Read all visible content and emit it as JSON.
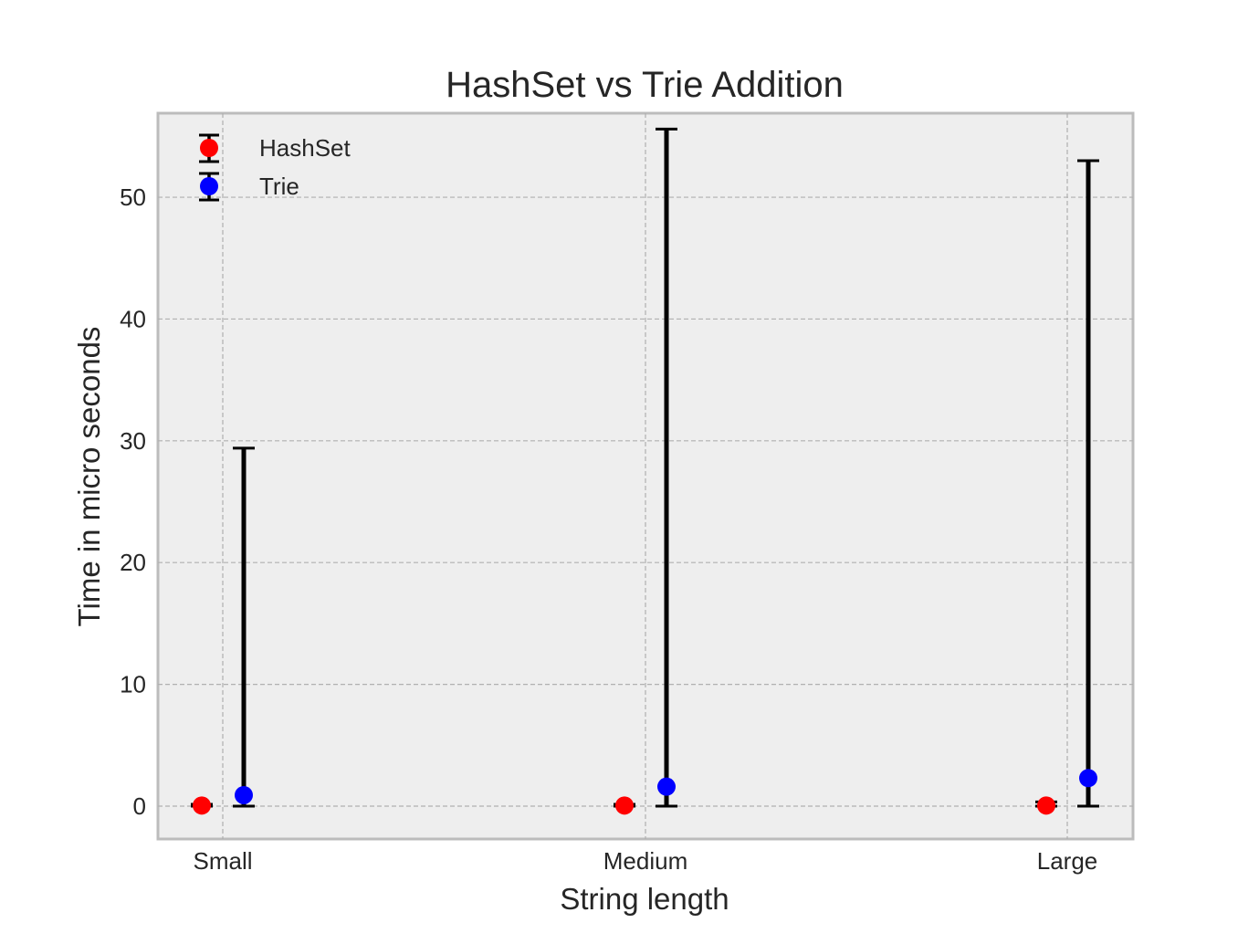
{
  "chart_data": {
    "type": "scatter",
    "title": "HashSet vs Trie Addition",
    "xlabel": "String length",
    "ylabel": "Time in micro seconds",
    "categories": [
      "Small",
      "Medium",
      "Large"
    ],
    "yticks": [
      0,
      10,
      20,
      30,
      40,
      50
    ],
    "ylim": [
      -2.7,
      56.9
    ],
    "grid": true,
    "legend_position": "top-left",
    "series": [
      {
        "name": "HashSet",
        "color": "#ff0000",
        "values": [
          0.05,
          0.05,
          0.05
        ],
        "err_low": [
          0.05,
          0.05,
          0.05
        ],
        "err_high": [
          0.1,
          0.1,
          0.3
        ]
      },
      {
        "name": "Trie",
        "color": "#0000ff",
        "values": [
          0.9,
          1.6,
          2.3
        ],
        "err_low": [
          0.9,
          1.6,
          2.3
        ],
        "err_high": [
          28.5,
          54.0,
          50.7
        ]
      }
    ]
  }
}
